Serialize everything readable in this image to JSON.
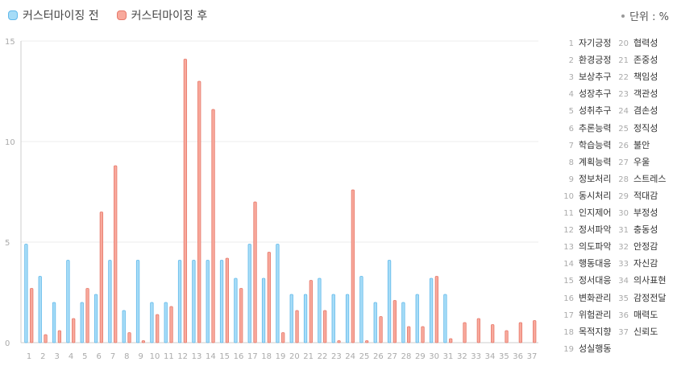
{
  "legend": {
    "before_label": "커스터마이징 전",
    "after_label": "커스터마이징 후"
  },
  "unit_label": "단위 : %",
  "colors": {
    "before_fill": "#a6dcf7",
    "before_stroke": "#62b9ea",
    "after_fill": "#f8a99c",
    "after_stroke": "#e6786a",
    "grid": "#eeeeee",
    "axis": "#cccccc",
    "tick_text": "#aaaaaa"
  },
  "chart_data": {
    "type": "bar",
    "title": "",
    "xlabel": "",
    "ylabel": "",
    "ylim": [
      0,
      15
    ],
    "yticks": [
      0,
      5,
      10,
      15
    ],
    "grid": true,
    "legend_position": "top-left",
    "categories": [
      "1",
      "2",
      "3",
      "4",
      "5",
      "6",
      "7",
      "8",
      "9",
      "10",
      "11",
      "12",
      "13",
      "14",
      "15",
      "16",
      "17",
      "18",
      "19",
      "20",
      "21",
      "22",
      "23",
      "24",
      "25",
      "26",
      "27",
      "28",
      "29",
      "30",
      "31",
      "32",
      "33",
      "34",
      "35",
      "36",
      "37"
    ],
    "series": [
      {
        "name": "커스터마이징 전",
        "values": [
          4.9,
          3.3,
          2.0,
          4.1,
          2.0,
          2.4,
          4.1,
          1.6,
          4.1,
          2.0,
          2.0,
          4.1,
          4.1,
          4.1,
          4.1,
          3.2,
          4.9,
          3.2,
          4.9,
          2.4,
          2.4,
          3.2,
          2.4,
          2.4,
          3.3,
          2.0,
          4.1,
          2.0,
          2.4,
          3.2,
          2.4,
          0,
          0,
          0,
          0,
          0,
          0
        ]
      },
      {
        "name": "커스터마이징 후",
        "values": [
          2.7,
          0.4,
          0.6,
          1.2,
          2.7,
          6.5,
          8.8,
          0.5,
          0.1,
          1.4,
          1.8,
          14.1,
          13.0,
          11.6,
          4.2,
          2.7,
          7.0,
          4.5,
          0.5,
          1.6,
          3.1,
          1.6,
          0.1,
          7.6,
          0.1,
          1.3,
          2.1,
          0.8,
          0.8,
          3.3,
          0.2,
          1.0,
          1.2,
          0.9,
          0.6,
          1.0,
          1.1
        ]
      }
    ]
  },
  "category_legend": [
    {
      "num": "1",
      "name": "자기긍정"
    },
    {
      "num": "2",
      "name": "환경긍정"
    },
    {
      "num": "3",
      "name": "보상추구"
    },
    {
      "num": "4",
      "name": "성장추구"
    },
    {
      "num": "5",
      "name": "성취추구"
    },
    {
      "num": "6",
      "name": "추론능력"
    },
    {
      "num": "7",
      "name": "학습능력"
    },
    {
      "num": "8",
      "name": "계획능력"
    },
    {
      "num": "9",
      "name": "정보처리"
    },
    {
      "num": "10",
      "name": "동시처리"
    },
    {
      "num": "11",
      "name": "인지제어"
    },
    {
      "num": "12",
      "name": "정서파악"
    },
    {
      "num": "13",
      "name": "의도파악"
    },
    {
      "num": "14",
      "name": "행동대응"
    },
    {
      "num": "15",
      "name": "정서대응"
    },
    {
      "num": "16",
      "name": "변화관리"
    },
    {
      "num": "17",
      "name": "위험관리"
    },
    {
      "num": "18",
      "name": "목적지향"
    },
    {
      "num": "19",
      "name": "성실행동"
    },
    {
      "num": "20",
      "name": "협력성"
    },
    {
      "num": "21",
      "name": "존중성"
    },
    {
      "num": "22",
      "name": "책임성"
    },
    {
      "num": "23",
      "name": "객관성"
    },
    {
      "num": "24",
      "name": "겸손성"
    },
    {
      "num": "25",
      "name": "정직성"
    },
    {
      "num": "26",
      "name": "불안"
    },
    {
      "num": "27",
      "name": "우울"
    },
    {
      "num": "28",
      "name": "스트레스"
    },
    {
      "num": "29",
      "name": "적대감"
    },
    {
      "num": "30",
      "name": "부정성"
    },
    {
      "num": "31",
      "name": "충동성"
    },
    {
      "num": "32",
      "name": "안정감"
    },
    {
      "num": "33",
      "name": "자신감"
    },
    {
      "num": "34",
      "name": "의사표현"
    },
    {
      "num": "35",
      "name": "감정전달"
    },
    {
      "num": "36",
      "name": "매력도"
    },
    {
      "num": "37",
      "name": "신뢰도"
    }
  ]
}
